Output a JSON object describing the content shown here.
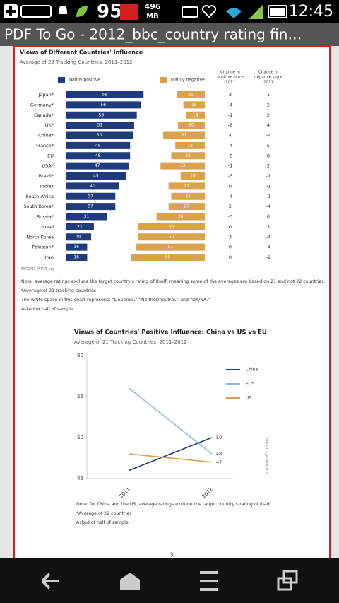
{
  "status_bar": {
    "signal_count": "95",
    "memory": [
      "496",
      "MB"
    ],
    "time": "12:45"
  },
  "app_bar": {
    "title": "PDF To Go - 2012_bbc_country rating fin…"
  },
  "chart_data": [
    {
      "type": "diverging_bar",
      "title": "Views of Different Countries' Influence",
      "subtitle": "Average of 22 Tracking Countries, 2011–2012",
      "categories": [
        "Japan*",
        "Germany*",
        "Canada*",
        "UK*",
        "China*",
        "France*",
        "EU",
        "USA*",
        "Brazil*",
        "India*",
        "South Africa",
        "South Korea*",
        "Russia*",
        "Israel",
        "North Korea",
        "Pakistan*",
        "Iran"
      ],
      "series": [
        {
          "name": "Mainly positive",
          "color": "#1f3b7b",
          "values": [
            58,
            56,
            53,
            51,
            50,
            48,
            48,
            47,
            45,
            40,
            37,
            37,
            31,
            21,
            19,
            16,
            16
          ]
        },
        {
          "name": "Mainly negative",
          "color": "#d9a24e",
          "values": [
            21,
            16,
            14,
            20,
            31,
            22,
            25,
            33,
            18,
            27,
            25,
            27,
            36,
            50,
            50,
            51,
            55
          ]
        }
      ],
      "table_columns": [
        {
          "header": [
            "Change in",
            "positive since",
            "2011"
          ],
          "values": [
            2,
            -4,
            -1,
            -6,
            4,
            -4,
            -8,
            -1,
            -3,
            0,
            -4,
            2,
            -3,
            0,
            3,
            0,
            0
          ]
        },
        {
          "header": [
            "Change in",
            "negative since",
            "2011"
          ],
          "values": [
            1,
            2,
            2,
            4,
            -4,
            5,
            8,
            2,
            -1,
            -1,
            -1,
            -4,
            0,
            3,
            -4,
            -4,
            -2
          ]
        }
      ],
      "source": "BBC2012_W1V2_agg",
      "notes": [
        "Note: average ratings exclude the target country's rating of itself, meaning some of the averages are based on 21 and not 22 countries.",
        "*Average of 21 tracking countries",
        "The white space in this chart represents “Depends,” “Neither/neutral,” and “DK/NA.”",
        "Asked of half of sample"
      ]
    },
    {
      "type": "line",
      "title": "Views of Countries' Positive Influence: China vs US vs EU",
      "subtitle": "Average of 21 Tracking Countries, 2011–2012",
      "x": [
        "2011",
        "2012"
      ],
      "ylim": [
        45,
        60
      ],
      "yticks": [
        45,
        50,
        55,
        60
      ],
      "series": [
        {
          "name": "China",
          "color": "#1d3c78",
          "values": [
            46,
            50
          ]
        },
        {
          "name": "EU*",
          "color": "#8ab8d8",
          "values": [
            56,
            48
          ]
        },
        {
          "name": "US",
          "color": "#d4a04a",
          "values": [
            48,
            47
          ]
        }
      ],
      "source": "BBC2012_W1V1b_LC3",
      "notes": [
        "Note: for China and the US, average ratings exclude the target country's rating of itself",
        "*Average of 22 countries",
        "Asked of half of sample"
      ]
    }
  ],
  "page_number": "3"
}
